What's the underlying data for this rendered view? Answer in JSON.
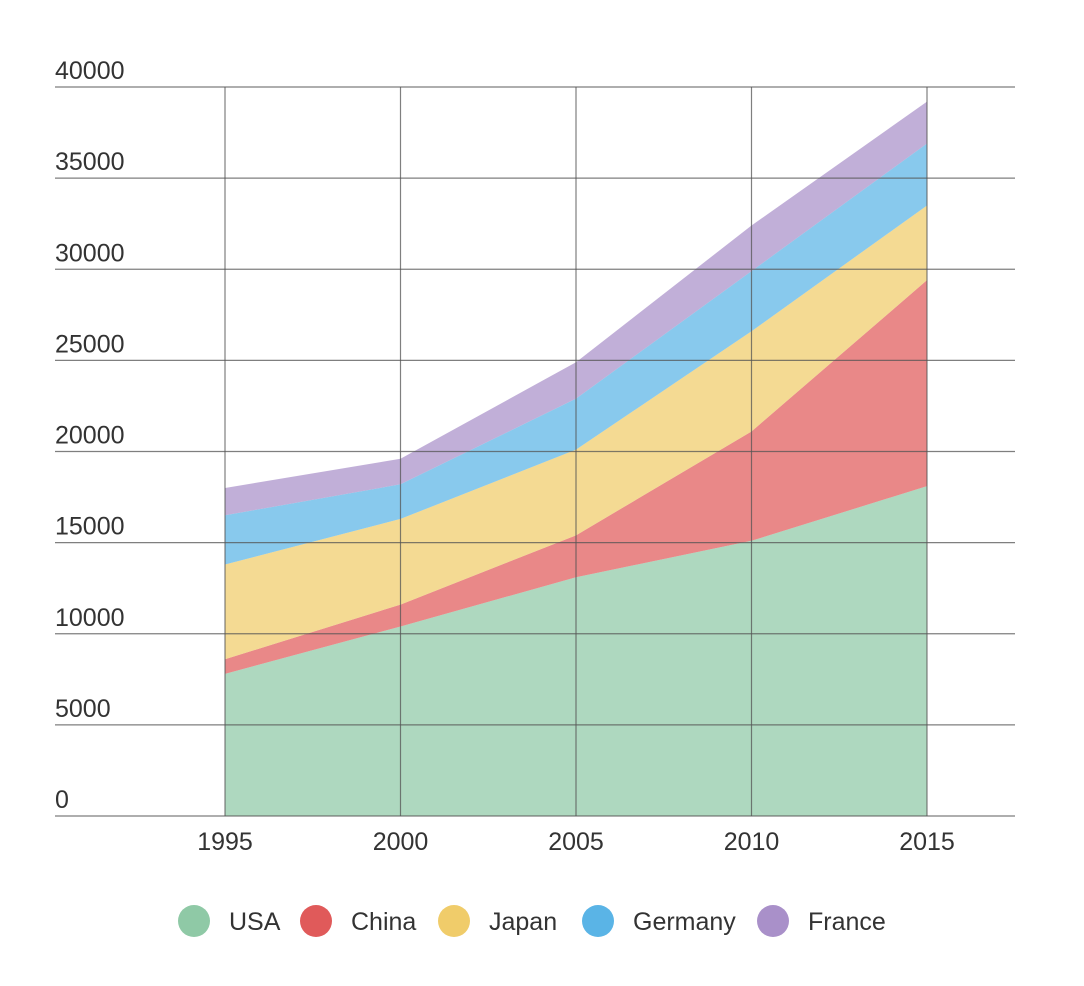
{
  "chart_data": {
    "type": "area",
    "stacked": true,
    "x": [
      1995,
      2000,
      2005,
      2010,
      2015
    ],
    "x_tick_labels": [
      "1995",
      "2000",
      "2005",
      "2010",
      "2015"
    ],
    "y_tick_labels": [
      "0",
      "5000",
      "10000",
      "15000",
      "20000",
      "25000",
      "30000",
      "35000",
      "40000"
    ],
    "ylim": [
      0,
      40000
    ],
    "grid": true,
    "legend_position": "bottom",
    "series": [
      {
        "name": "USA",
        "color": "#8fc9a6",
        "values": [
          7800,
          10400,
          13100,
          15100,
          18100
        ]
      },
      {
        "name": "China",
        "color": "#e05a5a",
        "values": [
          800,
          1200,
          2300,
          6000,
          11300
        ]
      },
      {
        "name": "Japan",
        "color": "#f0cc6a",
        "values": [
          5200,
          4700,
          4700,
          5500,
          4100
        ]
      },
      {
        "name": "Germany",
        "color": "#5ab4e6",
        "values": [
          2700,
          1900,
          2800,
          3300,
          3400
        ]
      },
      {
        "name": "France",
        "color": "#a990c9",
        "values": [
          1500,
          1400,
          2000,
          2500,
          2300
        ]
      }
    ]
  }
}
